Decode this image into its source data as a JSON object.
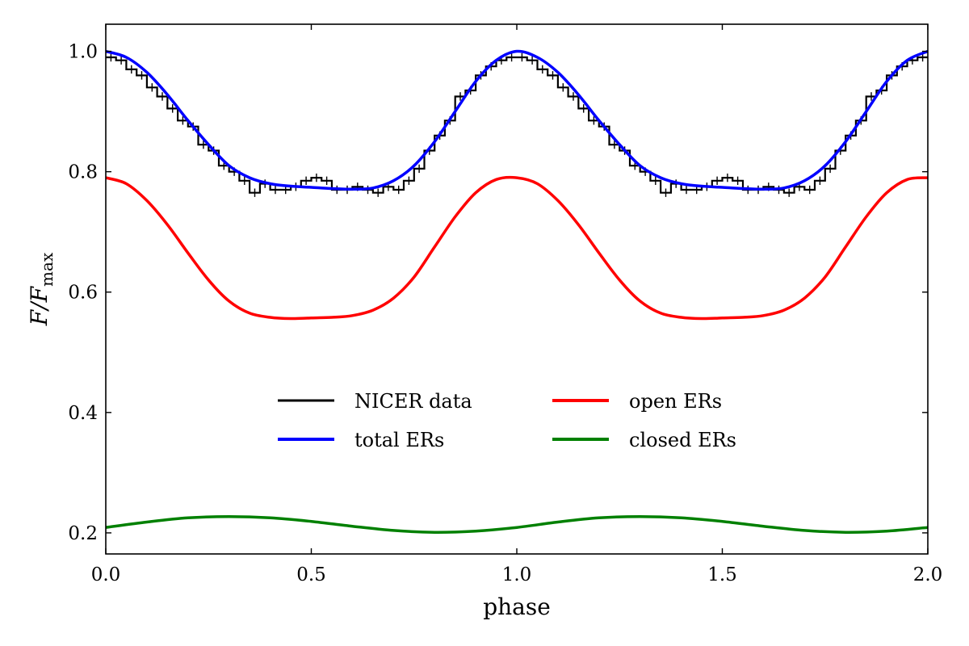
{
  "chart_data": {
    "type": "line",
    "title": "",
    "xlabel": "phase",
    "ylabel": {
      "base": "F/F",
      "subscript": "max"
    },
    "xlim": [
      0.0,
      2.0
    ],
    "ylim": [
      0.165,
      1.045
    ],
    "xticks": [
      0.0,
      0.5,
      1.0,
      1.5,
      2.0
    ],
    "xtick_labels": [
      "0.0",
      "0.5",
      "1.0",
      "1.5",
      "2.0"
    ],
    "yticks": [
      0.2,
      0.4,
      0.6,
      0.8,
      1.0
    ],
    "ytick_labels": [
      "0.2",
      "0.4",
      "0.6",
      "0.8",
      "1.0"
    ],
    "grid": false,
    "legend_position": "center",
    "series": [
      {
        "name": "NICER data",
        "color": "#000000",
        "style": "step-with-errorbars",
        "bin_width": 0.025,
        "x": [
          0.0125,
          0.0375,
          0.0625,
          0.0875,
          0.1125,
          0.1375,
          0.1625,
          0.1875,
          0.2125,
          0.2375,
          0.2625,
          0.2875,
          0.3125,
          0.3375,
          0.3625,
          0.3875,
          0.4125,
          0.4375,
          0.4625,
          0.4875,
          0.5125,
          0.5375,
          0.5625,
          0.5875,
          0.6125,
          0.6375,
          0.6625,
          0.6875,
          0.7125,
          0.7375,
          0.7625,
          0.7875,
          0.8125,
          0.8375,
          0.8625,
          0.8875,
          0.9125,
          0.9375,
          0.9625,
          0.9875,
          1.0125,
          1.0375,
          1.0625,
          1.0875,
          1.1125,
          1.1375,
          1.1625,
          1.1875,
          1.2125,
          1.2375,
          1.2625,
          1.2875,
          1.3125,
          1.3375,
          1.3625,
          1.3875,
          1.4125,
          1.4375,
          1.4625,
          1.4875,
          1.5125,
          1.5375,
          1.5625,
          1.5875,
          1.6125,
          1.6375,
          1.6625,
          1.6875,
          1.7125,
          1.7375,
          1.7625,
          1.7875,
          1.8125,
          1.8375,
          1.8625,
          1.8875,
          1.9125,
          1.9375,
          1.9625,
          1.9875
        ],
        "y": [
          0.99,
          0.985,
          0.97,
          0.96,
          0.94,
          0.925,
          0.905,
          0.885,
          0.875,
          0.845,
          0.835,
          0.81,
          0.8,
          0.785,
          0.765,
          0.78,
          0.77,
          0.77,
          0.775,
          0.785,
          0.79,
          0.785,
          0.77,
          0.77,
          0.775,
          0.77,
          0.765,
          0.775,
          0.77,
          0.785,
          0.805,
          0.835,
          0.86,
          0.885,
          0.925,
          0.935,
          0.96,
          0.975,
          0.985,
          0.99,
          0.99,
          0.985,
          0.97,
          0.96,
          0.94,
          0.925,
          0.905,
          0.885,
          0.875,
          0.845,
          0.835,
          0.81,
          0.8,
          0.785,
          0.765,
          0.78,
          0.77,
          0.77,
          0.775,
          0.785,
          0.79,
          0.785,
          0.77,
          0.77,
          0.775,
          0.77,
          0.765,
          0.775,
          0.77,
          0.785,
          0.805,
          0.835,
          0.86,
          0.885,
          0.925,
          0.935,
          0.96,
          0.975,
          0.985,
          0.99
        ],
        "yerr": 0.007
      },
      {
        "name": "total ERs",
        "color": "#0000ff",
        "x": [
          0.0,
          0.05,
          0.1,
          0.15,
          0.2,
          0.25,
          0.3,
          0.35,
          0.4,
          0.45,
          0.5,
          0.55,
          0.6,
          0.65,
          0.7,
          0.75,
          0.8,
          0.85,
          0.9,
          0.95,
          1.0,
          1.05,
          1.1,
          1.15,
          1.2,
          1.25,
          1.3,
          1.35,
          1.4,
          1.45,
          1.5,
          1.55,
          1.6,
          1.65,
          1.7,
          1.75,
          1.8,
          1.85,
          1.9,
          1.95,
          2.0
        ],
        "y": [
          1.0,
          0.99,
          0.965,
          0.928,
          0.885,
          0.845,
          0.81,
          0.79,
          0.78,
          0.776,
          0.774,
          0.772,
          0.771,
          0.773,
          0.785,
          0.81,
          0.85,
          0.9,
          0.95,
          0.985,
          1.0,
          0.99,
          0.965,
          0.928,
          0.885,
          0.845,
          0.81,
          0.79,
          0.78,
          0.776,
          0.774,
          0.772,
          0.771,
          0.773,
          0.785,
          0.81,
          0.85,
          0.9,
          0.95,
          0.985,
          1.0
        ]
      },
      {
        "name": "open ERs",
        "color": "#ff0000",
        "x": [
          0.0,
          0.05,
          0.1,
          0.15,
          0.2,
          0.25,
          0.3,
          0.35,
          0.4,
          0.45,
          0.5,
          0.55,
          0.6,
          0.65,
          0.7,
          0.75,
          0.8,
          0.85,
          0.9,
          0.95,
          1.0,
          1.05,
          1.1,
          1.15,
          1.2,
          1.25,
          1.3,
          1.35,
          1.4,
          1.45,
          1.5,
          1.55,
          1.6,
          1.65,
          1.7,
          1.75,
          1.8,
          1.85,
          1.9,
          1.95,
          2.0
        ],
        "y": [
          0.79,
          0.78,
          0.752,
          0.712,
          0.665,
          0.62,
          0.585,
          0.565,
          0.558,
          0.556,
          0.557,
          0.558,
          0.561,
          0.57,
          0.59,
          0.625,
          0.675,
          0.725,
          0.765,
          0.787,
          0.79,
          0.78,
          0.752,
          0.712,
          0.665,
          0.62,
          0.585,
          0.565,
          0.558,
          0.556,
          0.557,
          0.558,
          0.561,
          0.57,
          0.59,
          0.625,
          0.675,
          0.725,
          0.765,
          0.787,
          0.79
        ]
      },
      {
        "name": "closed ERs",
        "color": "#008000",
        "x": [
          0.0,
          0.1,
          0.2,
          0.3,
          0.4,
          0.5,
          0.6,
          0.7,
          0.8,
          0.9,
          1.0,
          1.1,
          1.2,
          1.3,
          1.4,
          1.5,
          1.6,
          1.7,
          1.8,
          1.9,
          2.0
        ],
        "y": [
          0.209,
          0.218,
          0.225,
          0.227,
          0.225,
          0.219,
          0.211,
          0.204,
          0.201,
          0.203,
          0.209,
          0.218,
          0.225,
          0.227,
          0.225,
          0.219,
          0.211,
          0.204,
          0.201,
          0.203,
          0.209
        ]
      }
    ]
  }
}
